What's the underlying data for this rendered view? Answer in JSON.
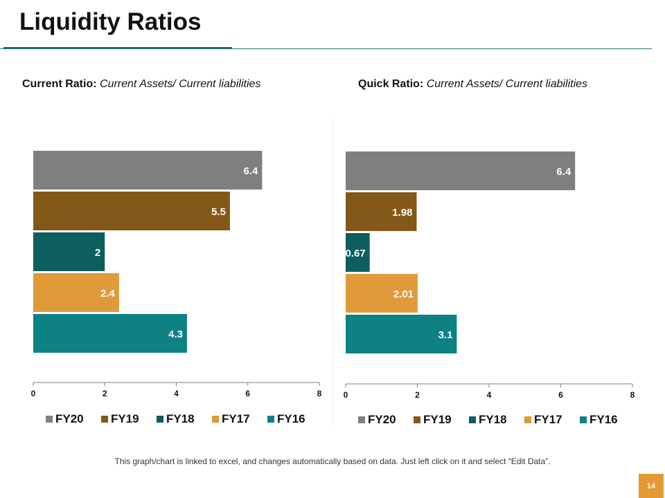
{
  "slide": {
    "title": "Liquidity Ratios",
    "footnote": "This graph/chart is linked to excel, and changes automatically based on data. Just left click on it and select “Edit Data”.",
    "page_number": "14"
  },
  "colors": {
    "FY20": "#7f7f7f",
    "FY19": "#835818",
    "FY18": "#0d5e5e",
    "FY17": "#e09a3a",
    "FY16": "#0d8184",
    "accent": "#1c7a7d",
    "badge": "#e39a35"
  },
  "chart_data": [
    {
      "type": "bar",
      "orientation": "horizontal",
      "title_bold": "Current Ratio:",
      "title_italic": "Current Assets/ Current liabilities",
      "categories": [
        "FY20",
        "FY19",
        "FY18",
        "FY17",
        "FY16"
      ],
      "values": [
        6.4,
        5.5,
        2,
        2.4,
        4.3
      ],
      "labels": [
        "6.4",
        "5.5",
        "2",
        "2.4",
        "4.3"
      ],
      "xlim": [
        0,
        8
      ],
      "xticks": [
        "0",
        "2",
        "4",
        "6",
        "8"
      ],
      "legend": "bottom"
    },
    {
      "type": "bar",
      "orientation": "horizontal",
      "title_bold": "Quick Ratio:",
      "title_italic": "Current Assets/ Current liabilities",
      "categories": [
        "FY20",
        "FY19",
        "FY18",
        "FY17",
        "FY16"
      ],
      "values": [
        6.4,
        1.98,
        0.67,
        2.01,
        3.1
      ],
      "labels": [
        "6.4",
        "1.98",
        "0.67",
        "2.01",
        "3.1"
      ],
      "xlim": [
        0,
        8
      ],
      "xticks": [
        "0",
        "2",
        "4",
        "6",
        "8"
      ],
      "legend": "bottom"
    }
  ]
}
